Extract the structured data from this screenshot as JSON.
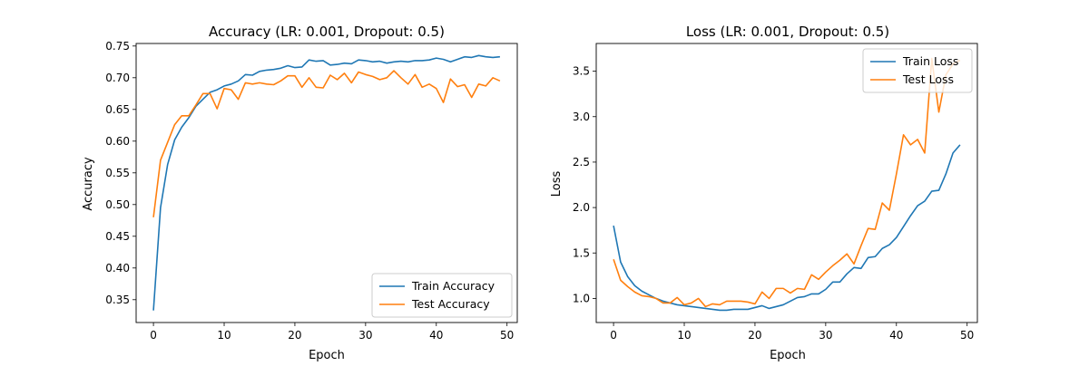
{
  "chart_data": [
    {
      "type": "line",
      "title": "Accuracy (LR: 0.001, Dropout: 0.5)",
      "xlabel": "Epoch",
      "ylabel": "Accuracy",
      "xlim": [
        -2.45,
        51.45
      ],
      "ylim": [
        0.314,
        0.754
      ],
      "xticks": [
        0,
        10,
        20,
        30,
        40,
        50
      ],
      "yticks": [
        0.35,
        0.4,
        0.45,
        0.5,
        0.55,
        0.6,
        0.65,
        0.7,
        0.75
      ],
      "ytick_decimals": 2,
      "grid": false,
      "legend_position": "lower-right",
      "series": [
        {
          "name": "Train Accuracy",
          "color": "#1f77b4",
          "x": [
            0,
            1,
            2,
            3,
            4,
            5,
            6,
            7,
            8,
            9,
            10,
            11,
            12,
            13,
            14,
            15,
            16,
            17,
            18,
            19,
            20,
            21,
            22,
            23,
            24,
            25,
            26,
            27,
            28,
            29,
            30,
            31,
            32,
            33,
            34,
            35,
            36,
            37,
            38,
            39,
            40,
            41,
            42,
            43,
            44,
            45,
            46,
            47,
            48,
            49
          ],
          "values": [
            0.333,
            0.495,
            0.563,
            0.602,
            0.622,
            0.637,
            0.655,
            0.666,
            0.677,
            0.681,
            0.687,
            0.69,
            0.695,
            0.705,
            0.704,
            0.71,
            0.712,
            0.713,
            0.715,
            0.719,
            0.716,
            0.717,
            0.728,
            0.726,
            0.727,
            0.72,
            0.721,
            0.723,
            0.722,
            0.728,
            0.727,
            0.725,
            0.726,
            0.723,
            0.725,
            0.726,
            0.725,
            0.727,
            0.727,
            0.728,
            0.731,
            0.729,
            0.725,
            0.729,
            0.733,
            0.732,
            0.735,
            0.733,
            0.732,
            0.733
          ]
        },
        {
          "name": "Test Accuracy",
          "color": "#ff7f0e",
          "x": [
            0,
            1,
            2,
            3,
            4,
            5,
            6,
            7,
            8,
            9,
            10,
            11,
            12,
            13,
            14,
            15,
            16,
            17,
            18,
            19,
            20,
            21,
            22,
            23,
            24,
            25,
            26,
            27,
            28,
            29,
            30,
            31,
            32,
            33,
            34,
            35,
            36,
            37,
            38,
            39,
            40,
            41,
            42,
            43,
            44,
            45,
            46,
            47,
            48,
            49
          ],
          "values": [
            0.48,
            0.57,
            0.598,
            0.626,
            0.64,
            0.64,
            0.657,
            0.675,
            0.675,
            0.651,
            0.683,
            0.681,
            0.666,
            0.692,
            0.69,
            0.692,
            0.69,
            0.689,
            0.695,
            0.703,
            0.703,
            0.685,
            0.7,
            0.685,
            0.684,
            0.704,
            0.697,
            0.707,
            0.692,
            0.709,
            0.705,
            0.702,
            0.697,
            0.7,
            0.711,
            0.7,
            0.69,
            0.705,
            0.685,
            0.69,
            0.683,
            0.661,
            0.698,
            0.686,
            0.689,
            0.669,
            0.69,
            0.687,
            0.7,
            0.695
          ]
        }
      ]
    },
    {
      "type": "line",
      "title": "Loss (LR: 0.001, Dropout: 0.5)",
      "xlabel": "Epoch",
      "ylabel": "Loss",
      "xlim": [
        -2.45,
        51.45
      ],
      "ylim": [
        0.735,
        3.805
      ],
      "xticks": [
        0,
        10,
        20,
        30,
        40,
        50
      ],
      "yticks": [
        1.0,
        1.5,
        2.0,
        2.5,
        3.0,
        3.5
      ],
      "ytick_decimals": 1,
      "grid": false,
      "legend_position": "upper-right",
      "series": [
        {
          "name": "Train Loss",
          "color": "#1f77b4",
          "x": [
            0,
            1,
            2,
            3,
            4,
            5,
            6,
            7,
            8,
            9,
            10,
            11,
            12,
            13,
            14,
            15,
            16,
            17,
            18,
            19,
            20,
            21,
            22,
            23,
            24,
            25,
            26,
            27,
            28,
            29,
            30,
            31,
            32,
            33,
            34,
            35,
            36,
            37,
            38,
            39,
            40,
            41,
            42,
            43,
            44,
            45,
            46,
            47,
            48,
            49
          ],
          "values": [
            1.8,
            1.4,
            1.24,
            1.14,
            1.08,
            1.04,
            1.0,
            0.97,
            0.95,
            0.93,
            0.92,
            0.91,
            0.9,
            0.89,
            0.88,
            0.87,
            0.87,
            0.88,
            0.88,
            0.88,
            0.9,
            0.92,
            0.89,
            0.91,
            0.93,
            0.97,
            1.01,
            1.02,
            1.05,
            1.05,
            1.1,
            1.18,
            1.18,
            1.27,
            1.34,
            1.33,
            1.45,
            1.46,
            1.55,
            1.59,
            1.67,
            1.79,
            1.91,
            2.02,
            2.07,
            2.18,
            2.19,
            2.37,
            2.6,
            2.69
          ]
        },
        {
          "name": "Test Loss",
          "color": "#ff7f0e",
          "x": [
            0,
            1,
            2,
            3,
            4,
            5,
            6,
            7,
            8,
            9,
            10,
            11,
            12,
            13,
            14,
            15,
            16,
            17,
            18,
            19,
            20,
            21,
            22,
            23,
            24,
            25,
            26,
            27,
            28,
            29,
            30,
            31,
            32,
            33,
            34,
            35,
            36,
            37,
            38,
            39,
            40,
            41,
            42,
            43,
            44,
            45,
            46,
            47,
            48,
            49
          ],
          "values": [
            1.43,
            1.2,
            1.13,
            1.07,
            1.03,
            1.02,
            1.0,
            0.95,
            0.95,
            1.01,
            0.93,
            0.95,
            1.0,
            0.91,
            0.94,
            0.93,
            0.97,
            0.97,
            0.97,
            0.96,
            0.94,
            1.07,
            1.0,
            1.11,
            1.11,
            1.06,
            1.11,
            1.1,
            1.26,
            1.21,
            1.29,
            1.36,
            1.42,
            1.49,
            1.38,
            1.58,
            1.77,
            1.76,
            2.05,
            1.97,
            2.37,
            2.8,
            2.69,
            2.75,
            2.6,
            3.64,
            3.05,
            3.46,
            3.58,
            3.62
          ]
        }
      ]
    }
  ]
}
